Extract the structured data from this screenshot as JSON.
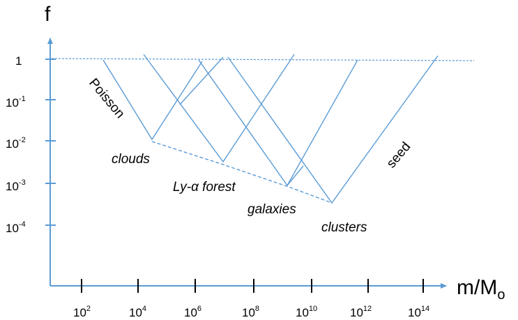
{
  "axes": {
    "y_label": "f",
    "x_label_main": "m/M",
    "x_label_sub": "o"
  },
  "y_ticks": [
    {
      "base": "1",
      "exp": ""
    },
    {
      "base": "10",
      "exp": "-1"
    },
    {
      "base": "10",
      "exp": "-2"
    },
    {
      "base": "10",
      "exp": "-3"
    },
    {
      "base": "10",
      "exp": "-4"
    }
  ],
  "x_ticks": [
    {
      "base": "10",
      "exp": "2"
    },
    {
      "base": "10",
      "exp": "4"
    },
    {
      "base": "10",
      "exp": "6"
    },
    {
      "base": "10",
      "exp": "8"
    },
    {
      "base": "10",
      "exp": "10"
    },
    {
      "base": "10",
      "exp": "12"
    },
    {
      "base": "10",
      "exp": "14"
    }
  ],
  "regions": {
    "poisson": "Poisson",
    "clouds": "clouds",
    "lya_prefix": "Ly-",
    "lya_alpha": "α",
    "lya_suffix": " forest",
    "galaxies": "galaxies",
    "clusters": "clusters",
    "seed": "seed"
  },
  "colors": {
    "lines": "#5b9bd5",
    "text": "#000000"
  }
}
